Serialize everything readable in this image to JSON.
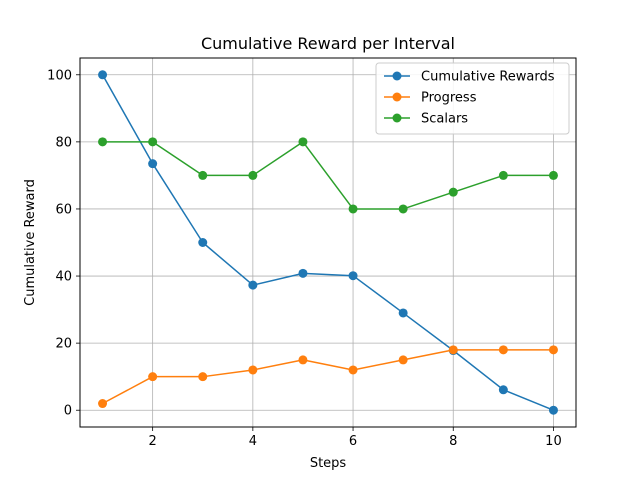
{
  "chart_data": {
    "type": "line",
    "title": "Cumulative Reward per Interval",
    "xlabel": "Steps",
    "ylabel": "Cumulative Reward",
    "x": [
      1,
      2,
      3,
      4,
      5,
      6,
      7,
      8,
      9,
      10
    ],
    "series": [
      {
        "name": "Cumulative Rewards",
        "color": "#1f77b4",
        "values": [
          100,
          73.5,
          50,
          37.3,
          40.8,
          40.1,
          29,
          17.8,
          6.1,
          0
        ]
      },
      {
        "name": "Progress",
        "color": "#ff7f0e",
        "values": [
          2,
          10,
          10,
          12,
          15,
          12,
          15,
          18,
          18,
          18
        ]
      },
      {
        "name": "Scalars",
        "color": "#2ca02c",
        "values": [
          80,
          80,
          70,
          70,
          80,
          60,
          60,
          65,
          70,
          70
        ]
      }
    ],
    "xlim": [
      0.55,
      10.45
    ],
    "ylim": [
      -5,
      105
    ],
    "xticks": [
      2,
      4,
      6,
      8,
      10
    ],
    "yticks": [
      0,
      20,
      40,
      60,
      80,
      100
    ],
    "grid": true,
    "legend_position": "top-right"
  }
}
